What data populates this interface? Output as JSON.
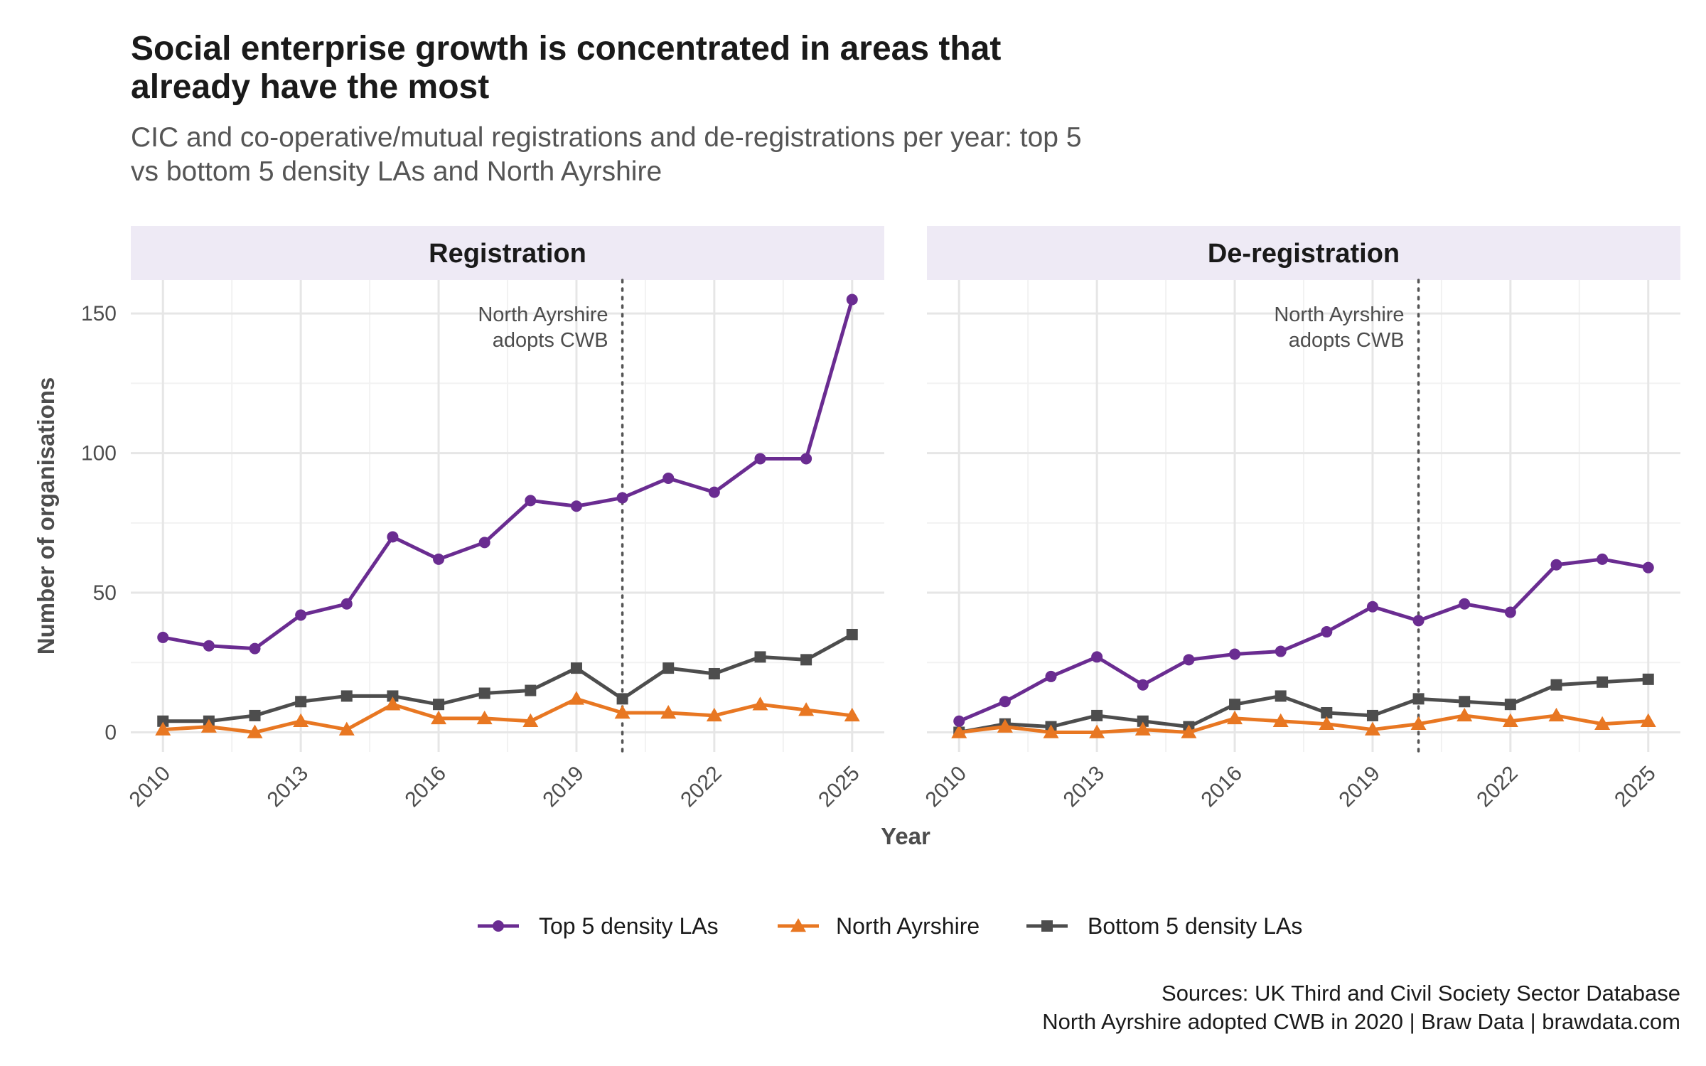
{
  "title_line1": "Social enterprise growth is concentrated in areas that",
  "title_line2": "already have the most",
  "subtitle_line1": "CIC and co-operative/mutual registrations and de-registrations per year: top 5",
  "subtitle_line2": "vs bottom 5 density LAs and North Ayrshire",
  "caption_line1": "Sources: UK Third and Civil Society Sector Database",
  "caption_line2": "North Ayrshire adopted CWB in 2020 | Braw Data | brawdata.com",
  "chart_data": {
    "type": "line",
    "xlabel": "Year",
    "ylabel": "Number of organisations",
    "xlim": [
      2009.3,
      2025.7
    ],
    "ylim": [
      -7,
      162
    ],
    "x_ticks": [
      2010,
      2013,
      2016,
      2019,
      2022,
      2025
    ],
    "y_ticks": [
      0,
      50,
      100,
      150
    ],
    "grid": true,
    "legend_position": "bottom",
    "vline": {
      "x": 2020,
      "label_line1": "North Ayrshire",
      "label_line2": "adopts CWB"
    },
    "x": [
      2010,
      2011,
      2012,
      2013,
      2014,
      2015,
      2016,
      2017,
      2018,
      2019,
      2020,
      2021,
      2022,
      2023,
      2024,
      2025
    ],
    "series_meta": [
      {
        "name": "Top 5 density LAs",
        "color": "#6a2c91",
        "marker": "circle"
      },
      {
        "name": "North Ayrshire",
        "color": "#e87722",
        "marker": "triangle"
      },
      {
        "name": "Bottom 5 density LAs",
        "color": "#4d4d4d",
        "marker": "square"
      }
    ],
    "panels": [
      {
        "label": "Registration",
        "series": [
          {
            "name": "Top 5 density LAs",
            "values": [
              34,
              31,
              30,
              42,
              46,
              70,
              62,
              68,
              83,
              81,
              84,
              91,
              86,
              98,
              98,
              155
            ]
          },
          {
            "name": "North Ayrshire",
            "values": [
              1,
              2,
              0,
              4,
              1,
              10,
              5,
              5,
              4,
              12,
              7,
              7,
              6,
              10,
              8,
              6
            ]
          },
          {
            "name": "Bottom 5 density LAs",
            "values": [
              4,
              4,
              6,
              11,
              13,
              13,
              10,
              14,
              15,
              23,
              12,
              23,
              21,
              27,
              26,
              35
            ]
          }
        ]
      },
      {
        "label": "De-registration",
        "series": [
          {
            "name": "Top 5 density LAs",
            "values": [
              4,
              11,
              20,
              27,
              17,
              26,
              28,
              29,
              36,
              45,
              40,
              46,
              43,
              60,
              62,
              59
            ]
          },
          {
            "name": "North Ayrshire",
            "values": [
              0,
              2,
              0,
              0,
              1,
              0,
              5,
              4,
              3,
              1,
              3,
              6,
              4,
              6,
              3,
              4
            ]
          },
          {
            "name": "Bottom 5 density LAs",
            "values": [
              0,
              3,
              2,
              6,
              4,
              2,
              10,
              13,
              7,
              6,
              12,
              11,
              10,
              17,
              18,
              19
            ]
          }
        ]
      }
    ]
  }
}
